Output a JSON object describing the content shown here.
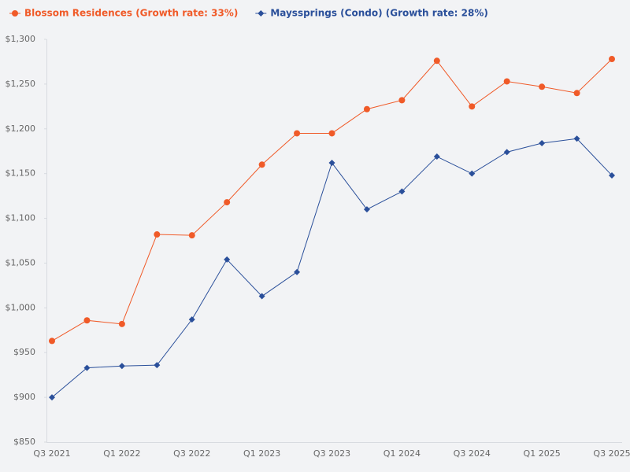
{
  "chart_data": {
    "type": "line",
    "categories": [
      "Q3 2021",
      null,
      "Q1 2022",
      null,
      "Q3 2022",
      null,
      "Q1 2023",
      null,
      "Q3 2023",
      null,
      "Q1 2024",
      null,
      "Q3 2024",
      null,
      "Q1 2025",
      null,
      "Q3 2025"
    ],
    "series": [
      {
        "name": "Blossom Residences (Growth rate: 33%)",
        "color": "#f05a28",
        "marker": "circle",
        "values": [
          963,
          986,
          982,
          1082,
          1081,
          1118,
          1160,
          1195,
          1195,
          1222,
          1232,
          1276,
          1225,
          1253,
          1247,
          1240,
          1278
        ]
      },
      {
        "name": "Mayssprings (Condo) (Growth rate: 28%)",
        "color": "#2a4f9a",
        "marker": "diamond",
        "values": [
          900,
          933,
          935,
          936,
          987,
          1054,
          1013,
          1040,
          1162,
          1110,
          1130,
          1169,
          1150,
          1174,
          1184,
          1189,
          1148
        ]
      }
    ],
    "ylim": [
      850,
      1300
    ],
    "yticks": [
      {
        "value": 850,
        "label": "$850"
      },
      {
        "value": 900,
        "label": "$900"
      },
      {
        "value": 950,
        "label": "$950"
      },
      {
        "value": 1000,
        "label": "$1,000"
      },
      {
        "value": 1050,
        "label": "$1,050"
      },
      {
        "value": 1100,
        "label": "$1,100"
      },
      {
        "value": 1150,
        "label": "$1,150"
      },
      {
        "value": 1200,
        "label": "$1,200"
      },
      {
        "value": 1250,
        "label": "$1,250"
      },
      {
        "value": 1300,
        "label": "$1,300"
      }
    ],
    "grid": false
  }
}
